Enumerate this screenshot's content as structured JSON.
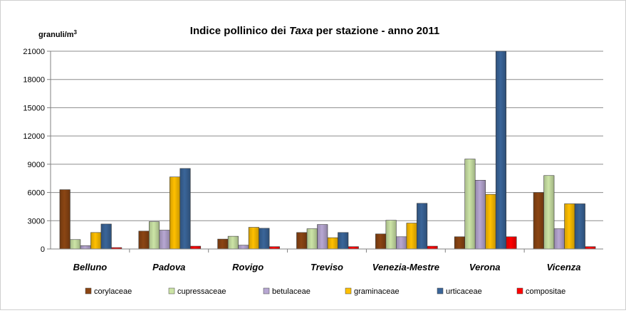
{
  "chart_data": {
    "type": "bar",
    "title_parts": [
      "Indice pollinico dei ",
      "Taxa",
      "  per stazione - anno 2011"
    ],
    "title_italic_index": 1,
    "ylabel": "granuli/m",
    "ylabel_sup": "3",
    "ylim": [
      0,
      21000
    ],
    "yticks": [
      "0",
      "3000",
      "6000",
      "9000",
      "12000",
      "15000",
      "18000",
      "21000"
    ],
    "ytick_values": [
      0,
      3000,
      6000,
      9000,
      12000,
      15000,
      18000,
      21000
    ],
    "grid": "horizontal",
    "legend_position": "bottom",
    "categories": [
      "Belluno",
      "Padova",
      "Rovigo",
      "Treviso",
      "Venezia-Mestre",
      "Verona",
      "Vicenza"
    ],
    "series": [
      {
        "name": "corylaceae",
        "color": "#8B4513",
        "values": [
          6300,
          1900,
          1050,
          1750,
          1600,
          1300,
          6000
        ]
      },
      {
        "name": "cupressaceae",
        "color": "#CCE4A6",
        "values": [
          1000,
          2900,
          1350,
          2150,
          3050,
          9550,
          7800
        ]
      },
      {
        "name": "betulaceae",
        "color": "#B7A7D2",
        "values": [
          350,
          2000,
          400,
          2600,
          1300,
          7300,
          2150
        ]
      },
      {
        "name": "graminaceae",
        "color": "#FFC000",
        "values": [
          1750,
          7650,
          2300,
          1200,
          2750,
          5800,
          4800
        ]
      },
      {
        "name": "urticaceae",
        "color": "#3A6599",
        "values": [
          2650,
          8550,
          2200,
          1750,
          4850,
          21000,
          4800
        ]
      },
      {
        "name": "compositae",
        "color": "#FF0000",
        "values": [
          150,
          300,
          250,
          250,
          300,
          1300,
          250
        ]
      }
    ]
  }
}
